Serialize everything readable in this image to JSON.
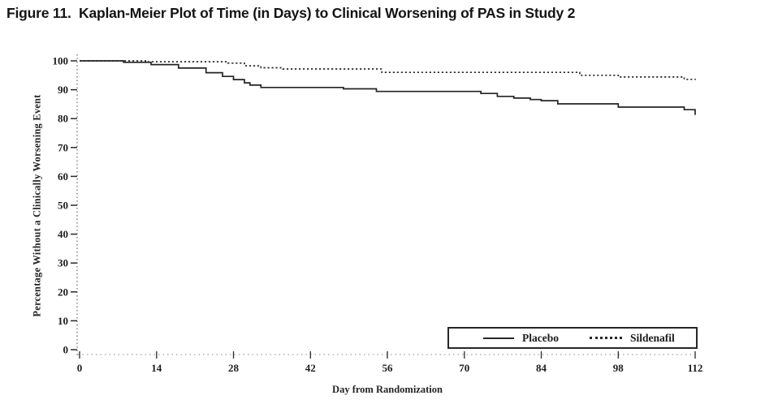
{
  "figure": {
    "title": "Figure 11.  Kaplan-Meier Plot of Time (in Days) to Clinical Worsening of PAS in Study 2"
  },
  "chart_data": {
    "type": "line",
    "subtype": "kaplan-meier-step",
    "title": "Figure 11.  Kaplan-Meier Plot of Time (in Days) to Clinical Worsening of PAS in Study 2",
    "xlabel": "Day from Randomization",
    "ylabel": "Percentage Without a Clinically Worsening Event",
    "xlim": [
      0,
      112
    ],
    "ylim": [
      0,
      100
    ],
    "xticks": [
      0,
      14,
      28,
      42,
      56,
      70,
      84,
      98,
      112
    ],
    "yticks": [
      0,
      10,
      20,
      30,
      40,
      50,
      60,
      70,
      80,
      90,
      100
    ],
    "grid": false,
    "legend_position": "inside-bottom-right",
    "series": [
      {
        "name": "Placebo",
        "style": "solid",
        "color": "#232323",
        "points": [
          [
            0,
            100
          ],
          [
            8,
            99.5
          ],
          [
            13,
            98.7
          ],
          [
            18,
            97.5
          ],
          [
            23,
            95.9
          ],
          [
            26,
            94.6
          ],
          [
            28,
            93.5
          ],
          [
            30,
            92.4
          ],
          [
            31,
            91.6
          ],
          [
            33,
            90.8
          ],
          [
            48,
            90.3
          ],
          [
            54,
            89.4
          ],
          [
            73,
            88.7
          ],
          [
            76,
            87.7
          ],
          [
            79,
            87.1
          ],
          [
            82,
            86.6
          ],
          [
            84,
            86.2
          ],
          [
            87,
            85.1
          ],
          [
            98,
            84.0
          ],
          [
            110,
            83.1
          ],
          [
            112,
            81.3
          ]
        ]
      },
      {
        "name": "Sildenafil",
        "style": "dotted",
        "color": "#2b2b2b",
        "points": [
          [
            0,
            100
          ],
          [
            12,
            99.7
          ],
          [
            27,
            99.2
          ],
          [
            30,
            98.3
          ],
          [
            33,
            97.6
          ],
          [
            37,
            97.2
          ],
          [
            55,
            96.0
          ],
          [
            91,
            95.0
          ],
          [
            98,
            94.4
          ],
          [
            110,
            93.6
          ],
          [
            112,
            93.4
          ]
        ]
      }
    ]
  },
  "colors": {
    "ink": "#1c1c1c",
    "axis": "#2a2a2a",
    "baseline": "#8a8a8a",
    "background": "#ffffff"
  }
}
